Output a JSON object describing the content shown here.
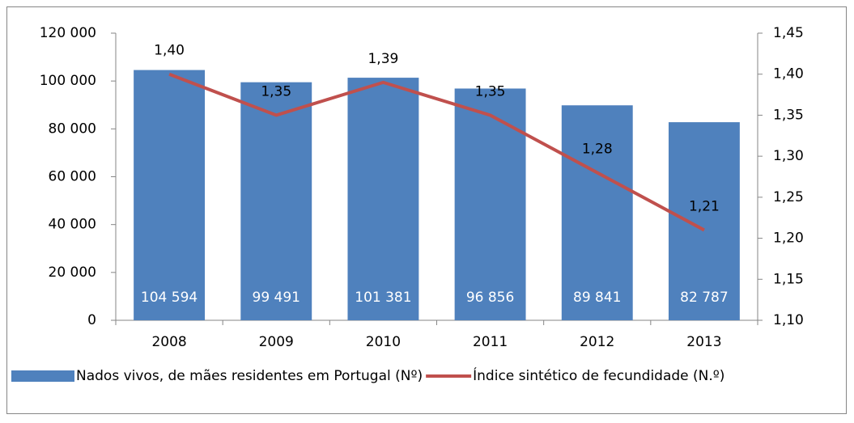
{
  "chart_data": {
    "type": "bar",
    "categories": [
      "2008",
      "2009",
      "2010",
      "2011",
      "2012",
      "2013"
    ],
    "series": [
      {
        "name": "Nados vivos, de mães residentes em Portugal (Nº)",
        "type": "bar",
        "color": "#4f81bd",
        "values": [
          104594,
          99491,
          101381,
          96856,
          89841,
          82787
        ],
        "value_labels": [
          "104 594",
          "99 491",
          "101 381",
          "96 856",
          "89 841",
          "82 787"
        ]
      },
      {
        "name": "Índice sintético de fecundidade (N.º)",
        "type": "line",
        "axis": "y2",
        "color": "#c0504d",
        "values": [
          1.4,
          1.35,
          1.39,
          1.35,
          1.28,
          1.21
        ],
        "value_labels": [
          "1,40",
          "1,35",
          "1,39",
          "1,35",
          "1,28",
          "1,21"
        ]
      }
    ],
    "ylim": [
      0,
      120000
    ],
    "yticks": [
      0,
      {
        "value": 20000,
        "label": "20 000"
      },
      {
        "value": 40000,
        "label": "40 000"
      },
      {
        "value": 60000,
        "label": "60 000"
      },
      {
        "value": 80000,
        "label": "80 000"
      },
      {
        "value": 100000,
        "label": "100 000"
      },
      {
        "value": 120000,
        "label": "120 000"
      }
    ],
    "y2lim": [
      1.1,
      1.45
    ],
    "y2ticks": [
      {
        "value": 1.1,
        "label": "1,10"
      },
      {
        "value": 1.15,
        "label": "1,15"
      },
      {
        "value": 1.2,
        "label": "1,20"
      },
      {
        "value": 1.25,
        "label": "1,25"
      },
      {
        "value": 1.3,
        "label": "1,30"
      },
      {
        "value": 1.35,
        "label": "1,35"
      },
      {
        "value": 1.4,
        "label": "1,40"
      },
      {
        "value": 1.45,
        "label": "1,45"
      }
    ],
    "grid": false,
    "legend": "bottom"
  }
}
